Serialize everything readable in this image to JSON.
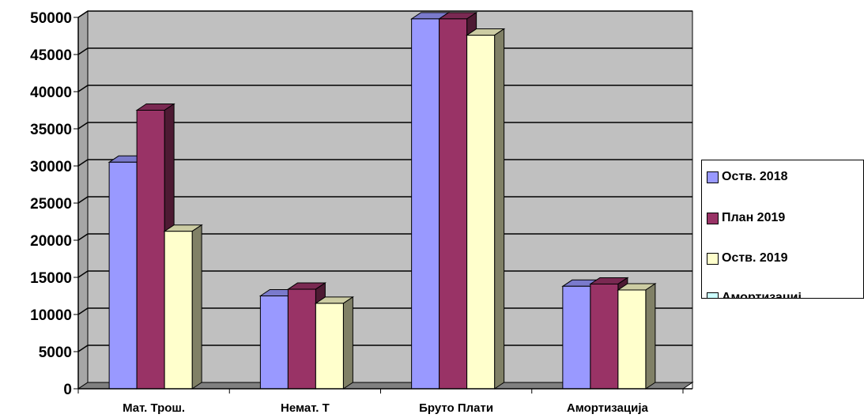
{
  "chart_data": {
    "type": "bar",
    "title": "",
    "xlabel": "",
    "ylabel": "",
    "ylim": [
      0,
      50000
    ],
    "yticks": [
      0,
      5000,
      10000,
      15000,
      20000,
      25000,
      30000,
      35000,
      40000,
      45000,
      50000
    ],
    "categories": [
      "Мат. Трош.",
      "Немат. Т",
      "Бруто Плати",
      "Амортизација"
    ],
    "series": [
      {
        "name": "Оств. 2018",
        "color": "#9999ff",
        "values": [
          30500,
          12500,
          49800,
          13800
        ]
      },
      {
        "name": "План 2019",
        "color": "#993366",
        "values": [
          37500,
          13400,
          49800,
          14100
        ]
      },
      {
        "name": "Оств. 2019",
        "color": "#ffffcc",
        "values": [
          21200,
          11500,
          47600,
          13300
        ]
      }
    ],
    "grid": true,
    "legend_position": "right",
    "legend_extra_entry": {
      "name": "Амортизациј",
      "color": "#ccffff"
    },
    "colors": {
      "plot_area": "#c0c0c0",
      "floor": "#808080",
      "gridline": "#000000"
    }
  }
}
